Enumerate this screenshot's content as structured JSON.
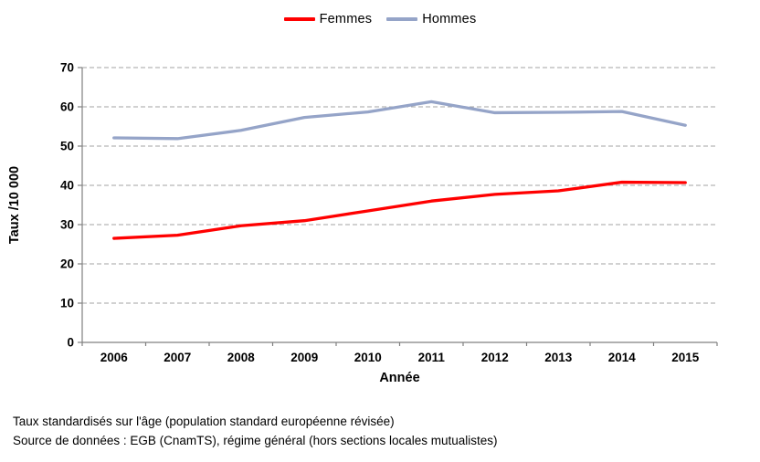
{
  "legend": {
    "items": [
      {
        "label": "Femmes",
        "color": "#ff0000"
      },
      {
        "label": "Hommes",
        "color": "#95a4c8"
      }
    ]
  },
  "chart_data": {
    "type": "line",
    "categories": [
      "2006",
      "2007",
      "2008",
      "2009",
      "2010",
      "2011",
      "2012",
      "2013",
      "2014",
      "2015"
    ],
    "series": [
      {
        "name": "Femmes",
        "color": "#ff0000",
        "values": [
          26.5,
          27.3,
          29.7,
          31.0,
          33.5,
          36.0,
          37.7,
          38.6,
          40.8,
          40.7
        ]
      },
      {
        "name": "Hommes",
        "color": "#95a4c8",
        "values": [
          52.1,
          51.9,
          54.0,
          57.3,
          58.7,
          61.3,
          58.5,
          58.6,
          58.8,
          55.3
        ]
      }
    ],
    "title": "",
    "xlabel": "Année",
    "ylabel": "Taux /10 000",
    "ylim": [
      0,
      70
    ],
    "ytick_step": 10,
    "grid": "horizontal-dashed",
    "legend_position": "top-center"
  },
  "colors": {
    "gridline": "#a3a3a3",
    "axis": "#808080",
    "text": "#000000"
  },
  "footer": {
    "line1": "Taux standardisés sur l'âge (population standard européenne révisée)",
    "line2": "Source de données : EGB (CnamTS), régime général (hors sections locales mutualistes)"
  }
}
